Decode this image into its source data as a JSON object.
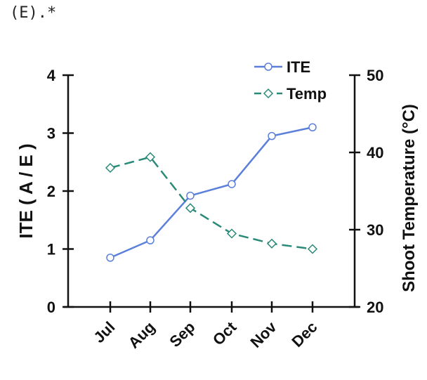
{
  "caption": "(E).*",
  "chart_data": {
    "type": "line",
    "categories": [
      "Jul",
      "Aug",
      "Sep",
      "Oct",
      "Nov",
      "Dec"
    ],
    "ylabel": "ITE ( A / E )",
    "ylim": [
      0,
      4
    ],
    "yticks": [
      "0",
      "1",
      "2",
      "3",
      "4"
    ],
    "y2label": "Shoot Temperature (°C)",
    "y2lim": [
      20,
      50
    ],
    "y2ticks": [
      "20",
      "30",
      "40",
      "50"
    ],
    "legend_position": "top-right",
    "grid": false,
    "series": [
      {
        "name": "ITE",
        "axis": "left",
        "color": "#5b7fdb",
        "dash": "solid",
        "marker": "circle",
        "values": [
          0.85,
          1.15,
          1.92,
          2.12,
          2.95,
          3.1
        ]
      },
      {
        "name": "Temp",
        "axis": "right",
        "color": "#2a8a78",
        "dash": "dashed",
        "marker": "diamond",
        "values": [
          38,
          39.4,
          32.8,
          29.5,
          28.2,
          27.5
        ]
      }
    ]
  }
}
